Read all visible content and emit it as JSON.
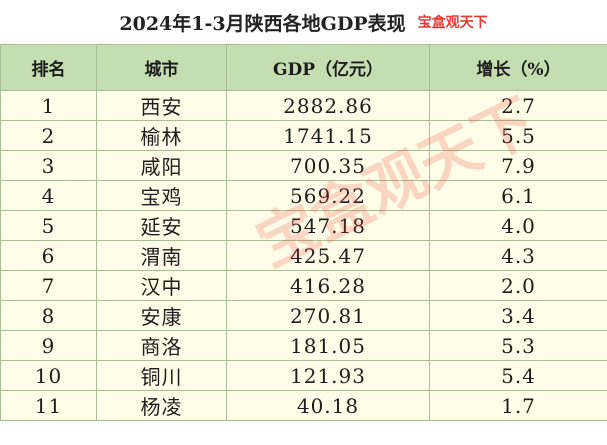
{
  "title": "2024年1-3月陕西各地GDP表现",
  "badge": "宝盒观天下",
  "headers": [
    "排名",
    "城市",
    "GDP（亿元）",
    "增长（%）"
  ],
  "rows": [
    {
      "rank": "1",
      "city": "西安",
      "gdp": "2882.86",
      "growth": "2.7"
    },
    {
      "rank": "2",
      "city": "榆林",
      "gdp": "1741.15",
      "growth": "5.5"
    },
    {
      "rank": "3",
      "city": "咸阳",
      "gdp": "700.35",
      "growth": "7.9"
    },
    {
      "rank": "4",
      "city": "宝鸡",
      "gdp": "569.22",
      "growth": "6.1"
    },
    {
      "rank": "5",
      "city": "延安",
      "gdp": "547.18",
      "growth": "4.0"
    },
    {
      "rank": "6",
      "city": "渭南",
      "gdp": "425.47",
      "growth": "4.3"
    },
    {
      "rank": "7",
      "city": "汉中",
      "gdp": "416.28",
      "growth": "2.0"
    },
    {
      "rank": "8",
      "city": "安康",
      "gdp": "270.81",
      "growth": "3.4"
    },
    {
      "rank": "9",
      "city": "商洛",
      "gdp": "181.05",
      "growth": "5.3"
    },
    {
      "rank": "10",
      "city": "铜川",
      "gdp": "121.93",
      "growth": "5.4"
    },
    {
      "rank": "11",
      "city": "杨凌",
      "gdp": "40.18",
      "growth": "1.7"
    }
  ],
  "watermark": "宝盒观天下",
  "colors": {
    "header_bg": "#c4ddb1",
    "row_bg": "#fffde7",
    "accent": "#e63a32"
  }
}
